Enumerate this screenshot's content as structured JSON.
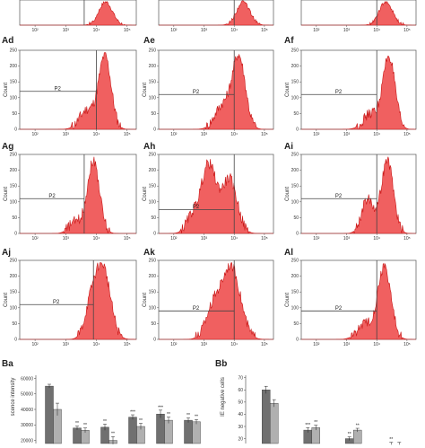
{
  "colors": {
    "fill": "#f06060",
    "stroke": "#c81414",
    "bar_dark": "#707070",
    "bar_light": "#b0b0b0"
  },
  "top_panels": [
    {
      "id": "top-1",
      "gate_x": 4000
    },
    {
      "id": "top-2",
      "gate_x": 10000
    },
    {
      "id": "top-3",
      "gate_x": 10000
    }
  ],
  "panels": [
    {
      "id": "Ad",
      "label": "Ad",
      "gate_label": "P2",
      "gate_x": 10000,
      "gate_y": 120,
      "peaks": [
        [
          4.28,
          0.95,
          0.2
        ],
        [
          3.7,
          0.25,
          0.25
        ]
      ]
    },
    {
      "id": "Ae",
      "label": "Ae",
      "gate_label": "P2",
      "gate_x": 10000,
      "gate_y": 110,
      "peaks": [
        [
          4.15,
          0.95,
          0.22
        ],
        [
          3.6,
          0.3,
          0.25
        ]
      ]
    },
    {
      "id": "Af",
      "label": "Af",
      "gate_label": "P2",
      "gate_x": 10000,
      "gate_y": 110,
      "peaks": [
        [
          4.4,
          0.95,
          0.2
        ],
        [
          3.8,
          0.2,
          0.25
        ]
      ]
    },
    {
      "id": "Ag",
      "label": "Ag",
      "gate_label": "P2",
      "gate_x": 4000,
      "gate_y": 110,
      "peaks": [
        [
          3.9,
          0.95,
          0.2
        ],
        [
          3.3,
          0.15,
          0.2
        ]
      ]
    },
    {
      "id": "Ah",
      "label": "Ah",
      "gate_label": "P2",
      "gate_x": 10000,
      "gate_y": 75,
      "peaks": [
        [
          3.15,
          0.9,
          0.25
        ],
        [
          3.85,
          0.7,
          0.25
        ],
        [
          2.6,
          0.2,
          0.2
        ]
      ]
    },
    {
      "id": "Ai",
      "label": "Ai",
      "gate_label": "P2",
      "gate_x": 10000,
      "gate_y": 110,
      "peaks": [
        [
          4.35,
          0.95,
          0.2
        ],
        [
          3.7,
          0.45,
          0.2
        ]
      ]
    },
    {
      "id": "Aj",
      "label": "Aj",
      "gate_label": "P2",
      "gate_x": 8000,
      "gate_y": 110,
      "peaks": [
        [
          4.2,
          0.95,
          0.25
        ],
        [
          3.8,
          0.35,
          0.2
        ]
      ]
    },
    {
      "id": "Ak",
      "label": "Ak",
      "gate_label": "P2",
      "gate_x": 10000,
      "gate_y": 90,
      "peaks": [
        [
          3.9,
          0.95,
          0.3
        ],
        [
          3.3,
          0.4,
          0.25
        ]
      ]
    },
    {
      "id": "Al",
      "label": "Al",
      "gate_label": "P2",
      "gate_x": 10000,
      "gate_y": 90,
      "peaks": [
        [
          4.25,
          0.95,
          0.22
        ],
        [
          3.6,
          0.2,
          0.25
        ]
      ]
    }
  ],
  "y_ticks": [
    0,
    50,
    100,
    150,
    200,
    250
  ],
  "x_tick_labels": [
    "10²",
    "10³",
    "10⁴",
    "10⁵"
  ],
  "x_tick_values": [
    2,
    3,
    4,
    5
  ],
  "ylabel": "Count",
  "chart_data": [
    {
      "type": "bar",
      "label": "Ba",
      "ylabel": "scence intensity",
      "yticks": [
        20000,
        30000,
        40000,
        50000,
        60000
      ],
      "ytick_labels": [
        "20000",
        "30000",
        "40000",
        "50000",
        "60000"
      ],
      "ylim": [
        18000,
        62000
      ],
      "groups": [
        {
          "dark": 55000,
          "light": 40000,
          "err_dark": 1200,
          "err_light": 4000,
          "sig_dark": "",
          "sig_light": ""
        },
        {
          "dark": 28000,
          "light": 26500,
          "err_dark": 1200,
          "err_light": 1500,
          "sig_dark": "**",
          "sig_light": "**"
        },
        {
          "dark": 28500,
          "light": 20000,
          "err_dark": 2000,
          "err_light": 2500,
          "sig_dark": "**",
          "sig_light": "**"
        },
        {
          "dark": 35000,
          "light": 29000,
          "err_dark": 1500,
          "err_light": 2000,
          "sig_dark": "***",
          "sig_light": "**"
        },
        {
          "dark": 37000,
          "light": 33000,
          "err_dark": 2500,
          "err_light": 2000,
          "sig_dark": "***",
          "sig_light": "**"
        },
        {
          "dark": 33000,
          "light": 32000,
          "err_dark": 1500,
          "err_light": 1500,
          "sig_dark": "**",
          "sig_light": "**"
        }
      ]
    },
    {
      "type": "bar",
      "label": "Bb",
      "ylabel": "IE negative cells",
      "yticks": [
        20,
        30,
        40,
        50,
        60,
        70
      ],
      "ytick_labels": [
        "20",
        "30",
        "40",
        "50",
        "60",
        "70"
      ],
      "ylim": [
        16,
        72
      ],
      "groups": [
        {
          "dark": 60,
          "light": 49,
          "err_dark": 3,
          "err_light": 3,
          "sig_dark": "",
          "sig_light": ""
        },
        {
          "dark": 27,
          "light": 29,
          "err_dark": 2,
          "err_light": 2,
          "sig_dark": "***",
          "sig_light": "**"
        },
        {
          "dark": 20,
          "light": 27,
          "err_dark": 1.5,
          "err_light": 1.5,
          "sig_dark": "**",
          "sig_light": "**"
        },
        {
          "dark": 16,
          "light": 16,
          "err_dark": 1,
          "err_light": 1,
          "sig_dark": "**",
          "sig_light": ""
        }
      ]
    }
  ]
}
